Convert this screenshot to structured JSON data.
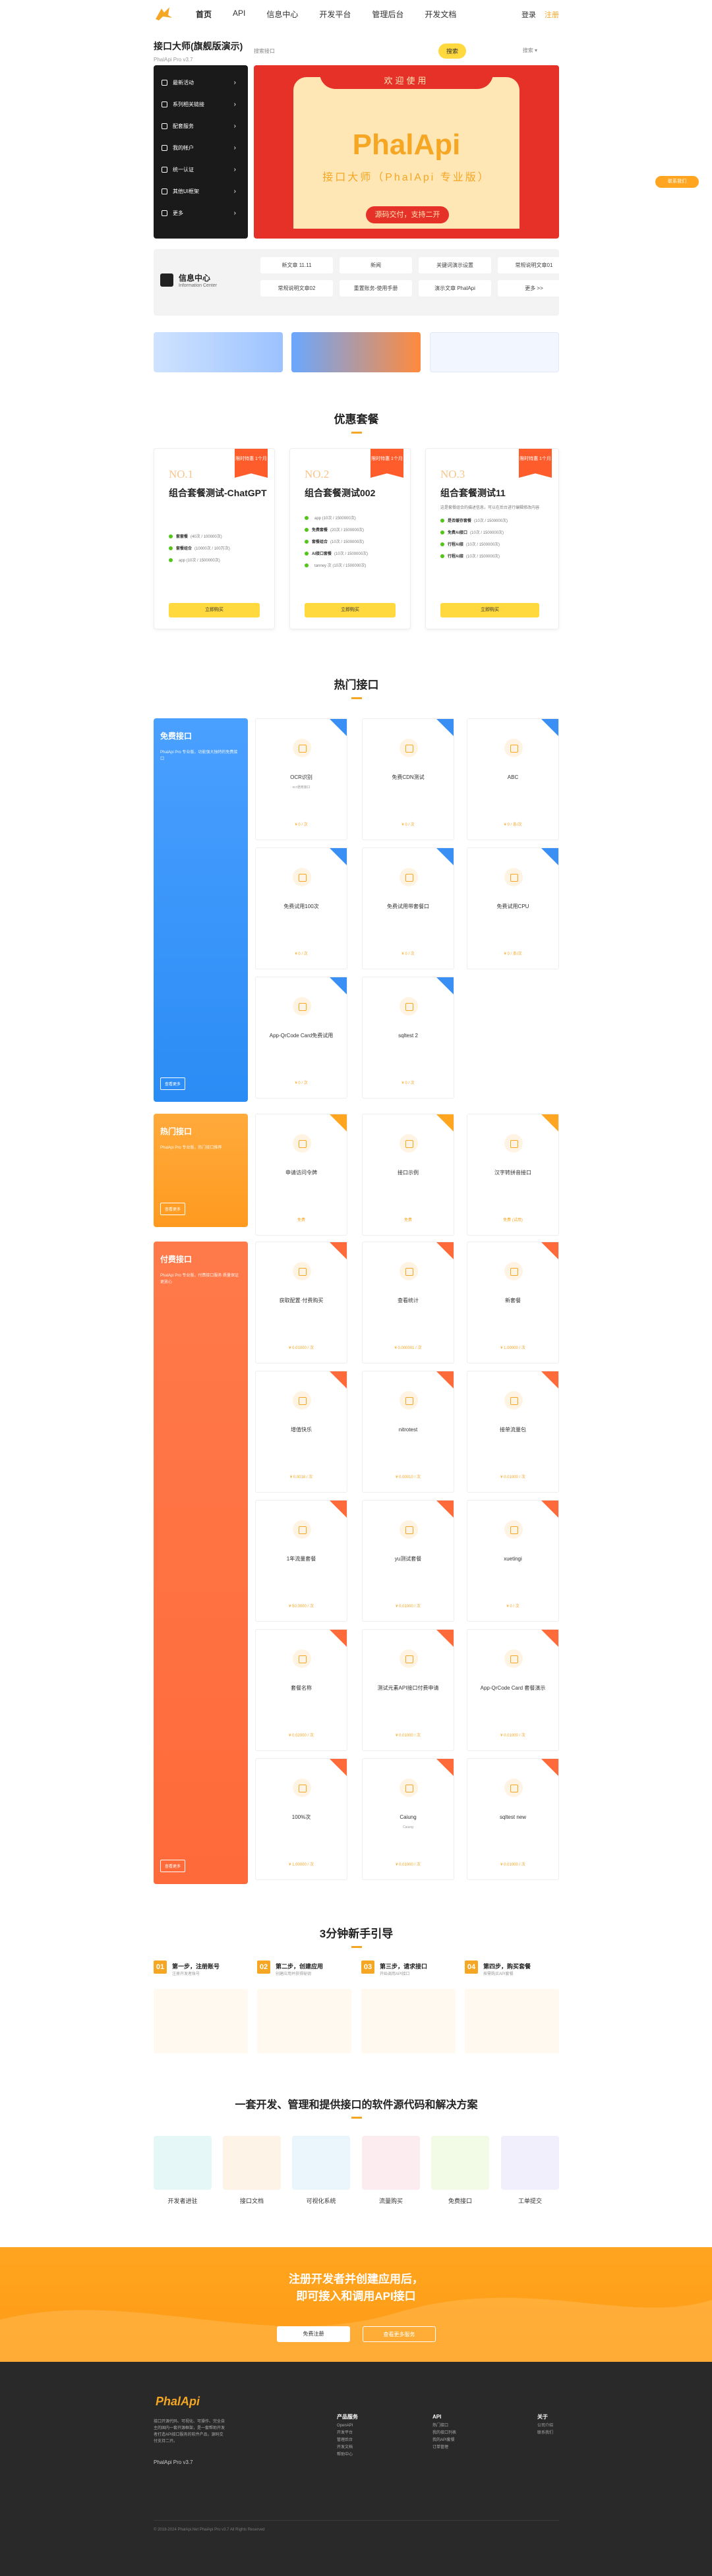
{
  "nav": {
    "items": [
      "首页",
      "API",
      "信息中心",
      "开发平台",
      "管理后台",
      "开发文档"
    ],
    "login": "登录",
    "register": "注册"
  },
  "title": {
    "name": "接口大师(旗舰版演示)",
    "sub": "PhalApi Pro v3.7"
  },
  "search": {
    "placeholder": "搜索接口",
    "button": "搜索",
    "more": "搜索 ▾"
  },
  "left_menu": [
    "最新活动",
    "系列相关链接",
    "配套服务",
    "我的帐户",
    "统一认证",
    "其他UI框架",
    "更多"
  ],
  "banner": {
    "top": "欢迎使用",
    "logo": "PhalApi",
    "cn": "接口大师（PhalApi 专业版）",
    "cta": "源码交付，支持二开"
  },
  "info": {
    "title": "信息中心",
    "sub": "Information Center",
    "items": [
      "新文章 11.11",
      "新闻",
      "关键词演示设置",
      "常规说明文章01",
      "常规说明文章02",
      "重置账务-使用手册",
      "演示文章 PhalApi",
      "更多 >>"
    ]
  },
  "float_btn": "联系我们",
  "packages": {
    "title": "优惠套餐",
    "items": [
      {
        "no": "NO.1",
        "tag": "限时特惠 1个月",
        "name": "组合套餐测试-ChatGPT",
        "lines": [
          {
            "b": "套套餐",
            "t": "(40次 / 100000次)"
          },
          {
            "b": "套餐组合",
            "t": "(10000次 / 100万次)"
          },
          {
            "b": "",
            "t": "app (10次 / 1500000次)"
          }
        ],
        "buy": "立即购买"
      },
      {
        "no": "NO.2",
        "tag": "限时特惠 1个月",
        "name": "组合套餐测试002",
        "lines": [
          {
            "b": "",
            "t": "app (10次 / 1500000次)"
          },
          {
            "b": "免费套餐",
            "t": "(20次 / 1500000次)"
          },
          {
            "b": "套餐组合",
            "t": "(10次 / 1500000次)"
          },
          {
            "b": "AI接口套餐",
            "t": "(10次 / 1500000次)"
          },
          {
            "b": "",
            "t": "tanney 次 (10次 / 1500000次)"
          }
        ],
        "buy": "立即购买"
      },
      {
        "no": "NO.3",
        "tag": "限时特惠 1个月",
        "name": "组合套餐测试11",
        "lines": [
          {
            "b": "",
            "t": "这是套餐组合的描述信息，可以在后台进行编辑修改内容"
          },
          {
            "b": "是否缓存套餐",
            "t": "(10次 / 1500000次)"
          },
          {
            "b": "免费AI接口",
            "t": "(10次 / 1500000次)"
          },
          {
            "b": "行程AI接",
            "t": "(10次 / 1500000次)"
          },
          {
            "b": "行程AI接",
            "t": "(10次 / 1500000次)"
          }
        ],
        "buy": "立即购买"
      }
    ]
  },
  "hot": {
    "title": "热门接口",
    "cats": [
      {
        "name": "免费接口",
        "desc": "PhalApi Pro 专业版，功能强大独特的免费接口",
        "more": "查看更多"
      },
      {
        "name": "热门接口",
        "desc": "PhalApi Pro 专业版，热门接口推荐",
        "more": "查看更多"
      },
      {
        "name": "付费接口",
        "desc": "PhalApi Pro 专业版，付费接口服务 质量保证更放心",
        "more": "查看更多"
      }
    ],
    "free": [
      {
        "n": "OCR识别",
        "s": "ocr通用接口",
        "p": "¥ 0 / 次"
      },
      {
        "n": "免费CDN测试",
        "p": "¥ 0 / 次"
      },
      {
        "n": "ABC",
        "p": "¥ 0 / 条/次"
      },
      {
        "n": "免费试用100次",
        "p": "¥ 0 / 次"
      },
      {
        "n": "免费试用带套餐口",
        "p": "¥ 0 / 次"
      },
      {
        "n": "免费试用CPU",
        "p": "¥ 0 / 条/次"
      },
      {
        "n": "App-QrCode Card免费试用",
        "p": "¥ 0 / 次"
      },
      {
        "n": "sqltest 2",
        "p": "¥ 0 / 次"
      }
    ],
    "hot": [
      {
        "n": "申请访问令牌",
        "p": "免费"
      },
      {
        "n": "接口示例",
        "p": "免费"
      },
      {
        "n": "汉字转拼音接口",
        "p": "免费 (试用)"
      }
    ],
    "paid": [
      {
        "n": "获取配置·付费购买",
        "p": "¥ 0.01000 / 次"
      },
      {
        "n": "查看统计",
        "p": "¥ 0.000001 / 次"
      },
      {
        "n": "新套餐",
        "p": "¥ 1.00000 / 次"
      },
      {
        "n": "增值快乐",
        "p": "¥ 0.0018 / 次"
      },
      {
        "n": "nitrotest",
        "p": "¥ 0.00010 / 次"
      },
      {
        "n": "接单流量包",
        "p": "¥ 0.01000 / 次"
      },
      {
        "n": "1年流量套餐",
        "p": "¥ 50.0000 / 次"
      },
      {
        "n": "yu测试套餐",
        "p": "¥ 0.01000 / 次"
      },
      {
        "n": "xuetingi",
        "p": "¥ 0 / 次"
      },
      {
        "n": "套餐名称",
        "p": "¥ 0.02000 / 次"
      },
      {
        "n": "测试元素API接口付费申请",
        "p": "¥ 0.01000 / 次"
      },
      {
        "n": "App-QrCode Card 套餐演示",
        "p": "¥ 0.01000 / 次"
      },
      {
        "n": "100%次",
        "p": "¥ 1.00000 / 次"
      },
      {
        "n": "Caiung",
        "s": "Caiung",
        "p": "¥ 0.01000 / 次"
      },
      {
        "n": "sqltest new",
        "p": "¥ 0.01000 / 次"
      }
    ]
  },
  "steps": {
    "title": "3分钟新手引导",
    "items": [
      {
        "n": "01",
        "h": "第一步，注册账号",
        "p": "注册开发者账号"
      },
      {
        "n": "02",
        "h": "第二步，创建应用",
        "p": "创建应用并获得秘钥"
      },
      {
        "n": "03",
        "h": "第三步，请求接口",
        "p": "开始调用API接口"
      },
      {
        "n": "04",
        "h": "第四步，购买套餐",
        "p": "按需购买API套餐"
      }
    ]
  },
  "solutions": {
    "title": "一套开发、管理和提供接口的软件源代码和解决方案",
    "items": [
      "开发者进驻",
      "接口文档",
      "可视化系统",
      "流量购买",
      "免费接口",
      "工单提交"
    ]
  },
  "cta": {
    "line1": "注册开发者并创建应用后，",
    "line2": "即可接入和调用API接口",
    "b1": "免费注册",
    "b2": "查看更多服务"
  },
  "footer": {
    "logo": "PhalApi",
    "desc": "接口开源代码、可视化、可操作、完全自主的国内一套开源框架，是一套帮助开发者打造API接口服务的软件产品，源码交付支持二开。",
    "ver": "PhalApi Pro v3.7",
    "cols": [
      {
        "h": "产品服务",
        "items": [
          "OpenAPI",
          "开发平台",
          "管理后台",
          "开发文档",
          "帮助中心"
        ]
      },
      {
        "h": "API",
        "items": [
          "热门接口",
          "我的接口列表",
          "我的API套餐",
          "订单管理"
        ]
      },
      {
        "h": "关于",
        "items": [
          "公司介绍",
          "联系我们"
        ]
      }
    ],
    "copy": "© 2018-2024 PhalApi.Net  PhalApi Pro v3.7  All Rights Reserved"
  }
}
